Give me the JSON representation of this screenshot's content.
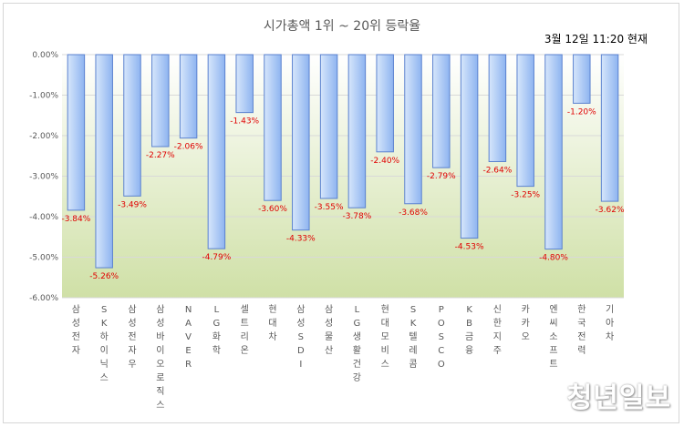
{
  "chart_data": {
    "type": "bar",
    "title": "시가총액 1위 ~ 20위 등락율",
    "subtitle": "3월 12일 11:20 현재",
    "xlabel": "",
    "ylabel": "",
    "ylim": [
      -6,
      0
    ],
    "yticks": [
      0,
      -1,
      -2,
      -3,
      -4,
      -5,
      -6
    ],
    "ytick_labels": [
      "0.00%",
      "-1.00%",
      "-2.00%",
      "-3.00%",
      "-4.00%",
      "-5.00%",
      "-6.00%"
    ],
    "grid": true,
    "legend": "none",
    "categories": [
      "삼성전자",
      "SK하이닉스",
      "삼성전자우",
      "삼성바이오로직스",
      "NAVER",
      "LG화학",
      "셀트리온",
      "현대차",
      "삼성SDI",
      "삼성물산",
      "LG생활건강",
      "현대모비스",
      "SK텔레콤",
      "POSCO",
      "KB금융",
      "신한지주",
      "카카오",
      "엔씨소프트",
      "한국전력",
      "기아차"
    ],
    "values": [
      -3.84,
      -5.26,
      -3.49,
      -2.27,
      -2.06,
      -4.79,
      -1.43,
      -3.6,
      -4.33,
      -3.55,
      -3.78,
      -2.4,
      -3.68,
      -2.79,
      -4.53,
      -2.64,
      -3.25,
      -4.8,
      -1.2,
      -3.62
    ],
    "data_labels": [
      "-3.84%",
      "-5.26%",
      "-3.49%",
      "-2.27%",
      "-2.06%",
      "-4.79%",
      "-1.43%",
      "-3.60%",
      "-4.33%",
      "-3.55%",
      "-3.78%",
      "-2.40%",
      "-3.68%",
      "-2.79%",
      "-4.53%",
      "-2.64%",
      "-3.25%",
      "-4.80%",
      "-1.20%",
      "-3.62%"
    ],
    "colors": {
      "bar_fill_light": "#d6e6fb",
      "bar_fill_dark": "#8eb4f0",
      "bar_stroke": "#5b82cf",
      "plot_bg_top": "#ffffff",
      "plot_bg_bottom": "#cfe0a6",
      "data_label": "#e00000",
      "grid": "#d9d9d9",
      "axis_text": "#595959"
    }
  },
  "watermark": "청년일보"
}
